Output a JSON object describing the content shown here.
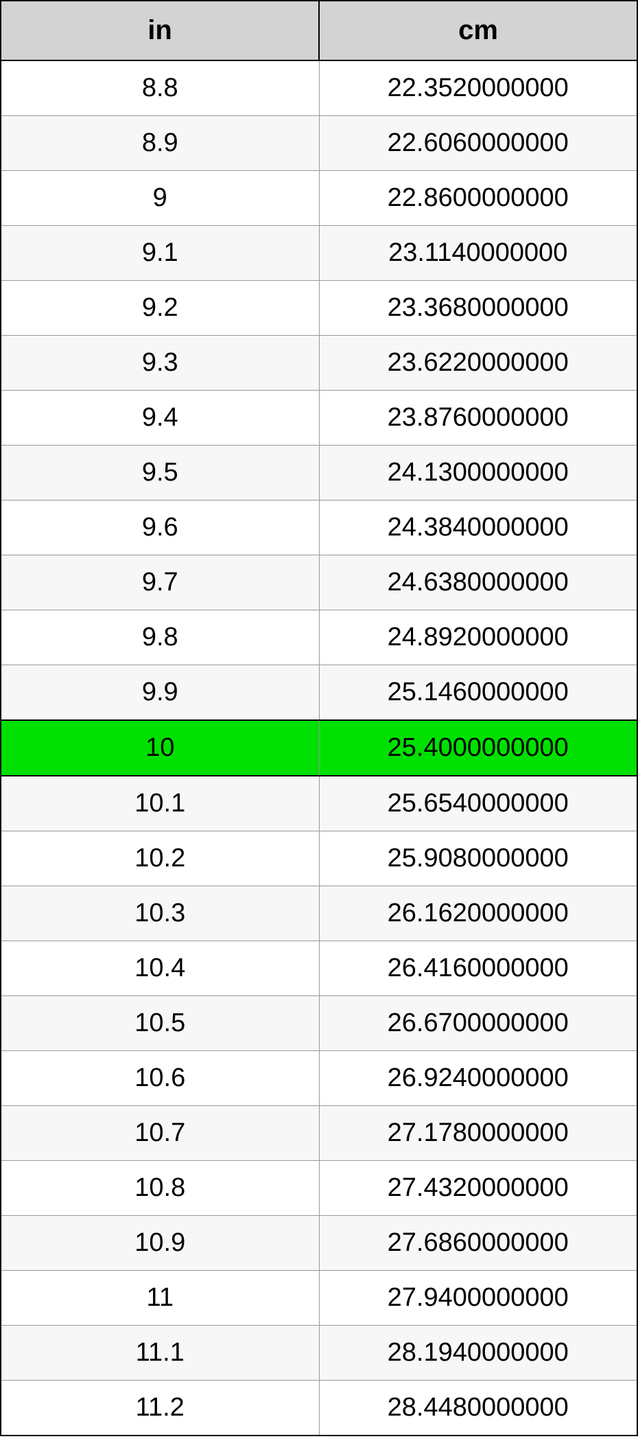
{
  "table": {
    "type": "table",
    "columns": [
      "in",
      "cm"
    ],
    "header_bg": "#d3d3d3",
    "header_fontsize": 40,
    "cell_fontsize": 38,
    "border_color": "#000000",
    "grid_color": "#999999",
    "row_bg_odd": "#ffffff",
    "row_bg_even": "#f7f7f7",
    "highlight_bg": "#00e000",
    "highlight_index": 12,
    "rows": [
      {
        "in": "8.8",
        "cm": "22.3520000000"
      },
      {
        "in": "8.9",
        "cm": "22.6060000000"
      },
      {
        "in": "9",
        "cm": "22.8600000000"
      },
      {
        "in": "9.1",
        "cm": "23.1140000000"
      },
      {
        "in": "9.2",
        "cm": "23.3680000000"
      },
      {
        "in": "9.3",
        "cm": "23.6220000000"
      },
      {
        "in": "9.4",
        "cm": "23.8760000000"
      },
      {
        "in": "9.5",
        "cm": "24.1300000000"
      },
      {
        "in": "9.6",
        "cm": "24.3840000000"
      },
      {
        "in": "9.7",
        "cm": "24.6380000000"
      },
      {
        "in": "9.8",
        "cm": "24.8920000000"
      },
      {
        "in": "9.9",
        "cm": "25.1460000000"
      },
      {
        "in": "10",
        "cm": "25.4000000000"
      },
      {
        "in": "10.1",
        "cm": "25.6540000000"
      },
      {
        "in": "10.2",
        "cm": "25.9080000000"
      },
      {
        "in": "10.3",
        "cm": "26.1620000000"
      },
      {
        "in": "10.4",
        "cm": "26.4160000000"
      },
      {
        "in": "10.5",
        "cm": "26.6700000000"
      },
      {
        "in": "10.6",
        "cm": "26.9240000000"
      },
      {
        "in": "10.7",
        "cm": "27.1780000000"
      },
      {
        "in": "10.8",
        "cm": "27.4320000000"
      },
      {
        "in": "10.9",
        "cm": "27.6860000000"
      },
      {
        "in": "11",
        "cm": "27.9400000000"
      },
      {
        "in": "11.1",
        "cm": "28.1940000000"
      },
      {
        "in": "11.2",
        "cm": "28.4480000000"
      }
    ]
  }
}
